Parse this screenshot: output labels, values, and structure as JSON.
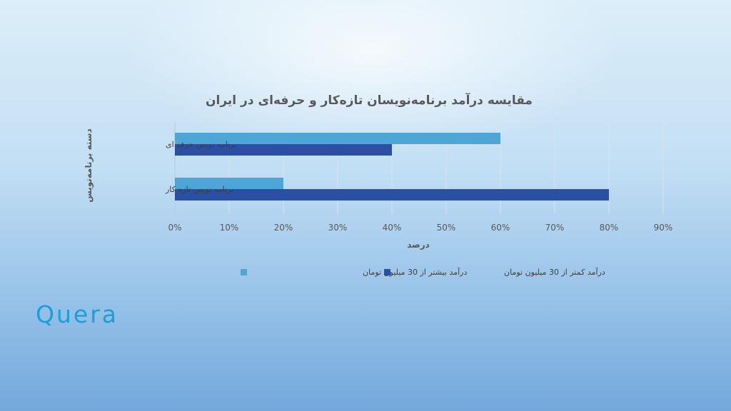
{
  "chart_data": {
    "type": "bar",
    "orientation": "horizontal",
    "title": "مقایسه درآمد برنامه‌نویسان تازه‌کار و حرفه‌ای در ایران",
    "xlabel": "درصد",
    "ylabel": "دسته برنامه‌نویس",
    "categories": [
      "برنامه نویس حرفه ای",
      "برنامه نویس تازه کار"
    ],
    "series": [
      {
        "name": "درآمد بیشتر از 30 میلیون تومان",
        "values": [
          60,
          20
        ],
        "color": "#4ea6d6"
      },
      {
        "name": "درآمد کمتر از 30 میلیون تومان",
        "values": [
          40,
          80
        ],
        "color": "#2a4fa3"
      }
    ],
    "xlim": [
      0,
      90
    ],
    "xticks": [
      "0%",
      "10%",
      "20%",
      "30%",
      "40%",
      "50%",
      "60%",
      "70%",
      "80%",
      "90%"
    ],
    "grid": "vertical",
    "legend": "bottom"
  },
  "logo": {
    "text": "Quera",
    "color": "#1a9fd6"
  }
}
